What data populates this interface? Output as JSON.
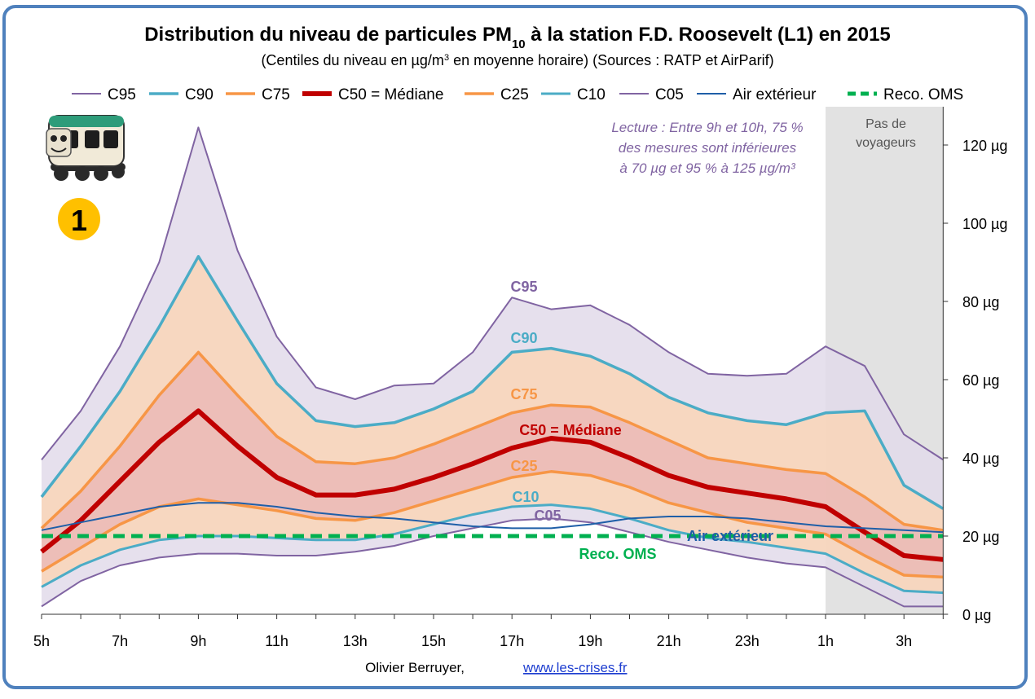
{
  "chart_data": {
    "type": "area",
    "title": "Distribution du niveau de particules PM",
    "title_sub": "10",
    "title_rest": " à la station F.D. Roosevelt (L1) en 2015",
    "subtitle_pre": "(Centiles du niveau en µg/m",
    "subtitle_sup": "3",
    "subtitle_post": " en moyenne horaire) (Sources : RATP et AirParif)",
    "ylim": [
      0,
      128
    ],
    "x_tick_labels": [
      "5h",
      "7h",
      "9h",
      "11h",
      "13h",
      "15h",
      "17h",
      "19h",
      "21h",
      "23h",
      "1h",
      "3h"
    ],
    "y_tick_labels": [
      "0 µg",
      "20 µg",
      "40 µg",
      "60 µg",
      "80 µg",
      "100 µg",
      "120 µg"
    ],
    "y_ticks": [
      0,
      20,
      40,
      60,
      80,
      100,
      120
    ],
    "x_hours": [
      "5h",
      "6h",
      "7h",
      "8h",
      "9h",
      "10h",
      "11h",
      "12h",
      "13h",
      "14h",
      "15h",
      "16h",
      "17h",
      "18h",
      "19h",
      "20h",
      "21h",
      "22h",
      "23h",
      "0h",
      "1h",
      "2h",
      "3h",
      "4h"
    ],
    "series": [
      {
        "name": "C95",
        "color": "#8064a2",
        "width": 2,
        "values": [
          39.5,
          52,
          68.5,
          90,
          124.5,
          93,
          71,
          58,
          55,
          58.5,
          59,
          67,
          81,
          78,
          79,
          74,
          67,
          61.5,
          61,
          61.5,
          68.5,
          63.5,
          46,
          39.5
        ]
      },
      {
        "name": "C90",
        "color": "#4bacc6",
        "width": 3.5,
        "values": [
          30,
          43,
          57,
          73.5,
          91.5,
          75,
          59,
          49.5,
          48,
          49,
          52.5,
          57,
          67,
          68,
          66,
          61.5,
          55.5,
          51.5,
          49.5,
          48.5,
          51.5,
          52,
          33,
          27
        ]
      },
      {
        "name": "C75",
        "color": "#f79646",
        "width": 3.5,
        "values": [
          22,
          31.5,
          43,
          56,
          67,
          56,
          45.5,
          39,
          38.5,
          40,
          43.5,
          47.5,
          51.5,
          53.5,
          53,
          49,
          44.5,
          40,
          38.5,
          37,
          36,
          30,
          23,
          21.5
        ]
      },
      {
        "name": "C50 = Médiane",
        "color": "#c00000",
        "width": 6,
        "values": [
          16,
          24,
          34,
          44,
          52,
          43,
          35,
          30.5,
          30.5,
          32,
          35,
          38.5,
          42.5,
          45,
          44,
          40,
          35.5,
          32.5,
          31,
          29.5,
          27.5,
          21,
          15,
          14
        ]
      },
      {
        "name": "C25",
        "color": "#f79646",
        "width": 3.5,
        "values": [
          11,
          17,
          23,
          27.5,
          29.5,
          28,
          26.5,
          24.5,
          24,
          26,
          29,
          32,
          35,
          36.5,
          35.5,
          32.5,
          28.5,
          26,
          23.5,
          22,
          20.5,
          15,
          10,
          9.5
        ]
      },
      {
        "name": "C10",
        "color": "#4bacc6",
        "width": 3,
        "values": [
          7,
          12.5,
          16.5,
          19,
          20,
          20,
          19.5,
          19,
          19,
          20.5,
          23,
          25.5,
          27.5,
          28,
          27,
          24.5,
          21.5,
          19.5,
          18.5,
          17,
          15.5,
          10.5,
          6,
          5.5
        ]
      },
      {
        "name": "C05",
        "color": "#8064a2",
        "width": 2,
        "values": [
          2,
          8.5,
          12.5,
          14.5,
          15.5,
          15.5,
          15,
          15,
          16,
          17.5,
          20,
          22,
          24,
          24.5,
          23.5,
          21,
          18.5,
          16.5,
          14.5,
          13,
          12,
          7,
          2,
          2
        ]
      },
      {
        "name": "Air extérieur",
        "color": "#1f5fa8",
        "width": 2,
        "values": [
          21.5,
          23.5,
          25.5,
          27.5,
          28.5,
          28.5,
          27.5,
          26,
          25,
          24.5,
          23.5,
          22.5,
          22,
          22,
          23,
          24.5,
          25,
          25,
          24.5,
          23.5,
          22.5,
          22,
          21.5,
          21
        ]
      },
      {
        "name": "Reco. OMS",
        "color": "#00b050",
        "width": 5,
        "dashed": true,
        "values": [
          20,
          20,
          20,
          20,
          20,
          20,
          20,
          20,
          20,
          20,
          20,
          20,
          20,
          20,
          20,
          20,
          20,
          20,
          20,
          20,
          20,
          20,
          20,
          20
        ]
      }
    ],
    "band_fills": {
      "outer": "#e2dbea",
      "middle": "#fbd4b4",
      "inner": "#eab8b5"
    },
    "grid": false,
    "legend_position": "top",
    "shaded_region": {
      "label_line1": "Pas de",
      "label_line2": "voyageurs",
      "x_start_index": 20,
      "x_end_index": 23,
      "color": "#e2e2e2"
    },
    "inline_labels": [
      {
        "text": "C95",
        "color": "#8064a2"
      },
      {
        "text": "C90",
        "color": "#4bacc6"
      },
      {
        "text": "C75",
        "color": "#f79646"
      },
      {
        "text": "C50 = Médiane",
        "color": "#c00000"
      },
      {
        "text": "C25",
        "color": "#f79646"
      },
      {
        "text": "C10",
        "color": "#4bacc6"
      },
      {
        "text": "C05",
        "color": "#8064a2"
      },
      {
        "text": "Air extérieur",
        "color": "#1f5fa8"
      },
      {
        "text": "Reco. OMS",
        "color": "#00b050"
      }
    ],
    "annotation": {
      "lines": [
        "Lecture :  Entre 9h et 10h, 75 %",
        "des mesures sont inférieures",
        "à 70 µg et 95 % à 125 µg/m³"
      ],
      "color": "#8064a2"
    },
    "badge": {
      "text": "1",
      "color": "#ffc000"
    },
    "footer": {
      "author": "Olivier Berruyer, ",
      "link": "www.les-crises.fr"
    },
    "frame_color": "#4f81bd"
  }
}
